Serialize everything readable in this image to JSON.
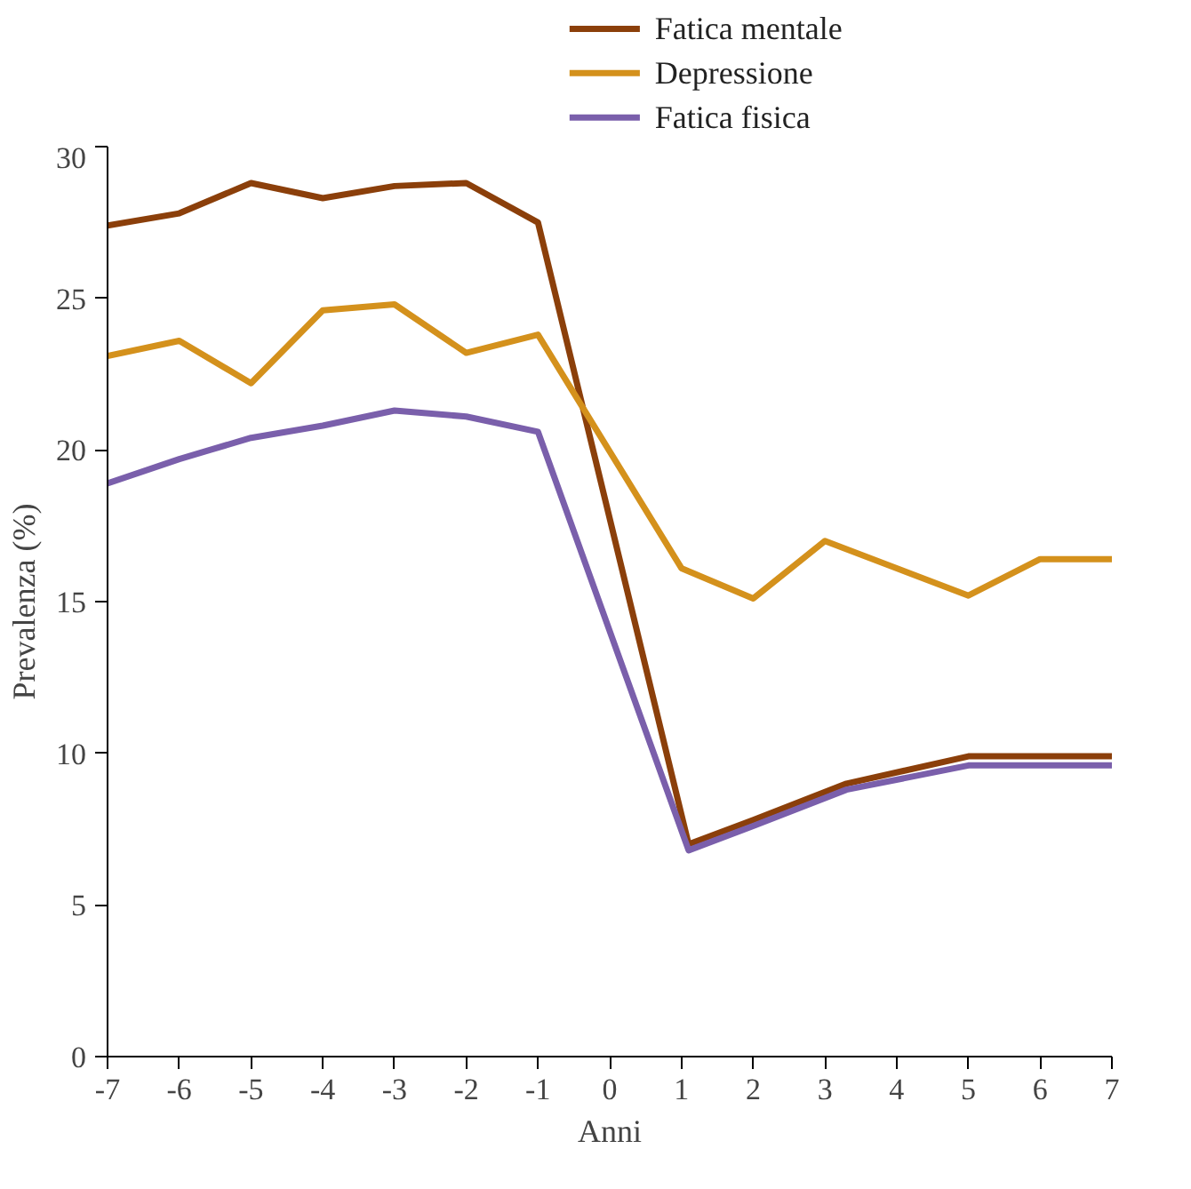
{
  "chart_data": {
    "type": "line",
    "xlabel": "Anni",
    "ylabel": "Prevalenza (%)",
    "xlim": [
      -7,
      7
    ],
    "xticks": [
      -7,
      -6,
      -5,
      -4,
      -3,
      -2,
      -1,
      0,
      1,
      2,
      3,
      4,
      5,
      6,
      7
    ],
    "ylim": [
      0,
      30
    ],
    "yticks": [
      0,
      5,
      10,
      15,
      20,
      25,
      30
    ],
    "grid": false,
    "legend": "top right",
    "marker": "none",
    "line_style": "solid",
    "series": [
      {
        "name": "Fatica mentale",
        "color": "#8b3f0a",
        "x": [
          -7,
          -6,
          -5,
          -4,
          -3,
          -2,
          -1,
          1.1,
          2,
          3.3,
          5,
          6,
          7
        ],
        "values": [
          27.4,
          27.8,
          28.8,
          28.3,
          28.7,
          28.8,
          27.5,
          7.0,
          7.8,
          9.0,
          9.9,
          9.9,
          9.9
        ]
      },
      {
        "name": "Depressione",
        "color": "#d4911c",
        "x": [
          -7,
          -6,
          -5,
          -4,
          -3,
          -2,
          -1,
          1,
          2,
          3,
          4,
          5,
          6,
          7
        ],
        "values": [
          23.1,
          23.6,
          22.2,
          24.6,
          24.8,
          23.2,
          23.8,
          16.1,
          15.1,
          17.0,
          16.1,
          15.2,
          16.4,
          16.4
        ]
      },
      {
        "name": "Fatica fisica",
        "color": "#7a5fab",
        "x": [
          -7,
          -6,
          -5,
          -4,
          -3,
          -2,
          -1,
          1.1,
          2,
          3.3,
          5,
          6,
          7
        ],
        "values": [
          18.9,
          19.7,
          20.4,
          20.8,
          21.3,
          21.1,
          20.6,
          6.8,
          7.6,
          8.8,
          9.6,
          9.6,
          9.6
        ]
      }
    ]
  }
}
